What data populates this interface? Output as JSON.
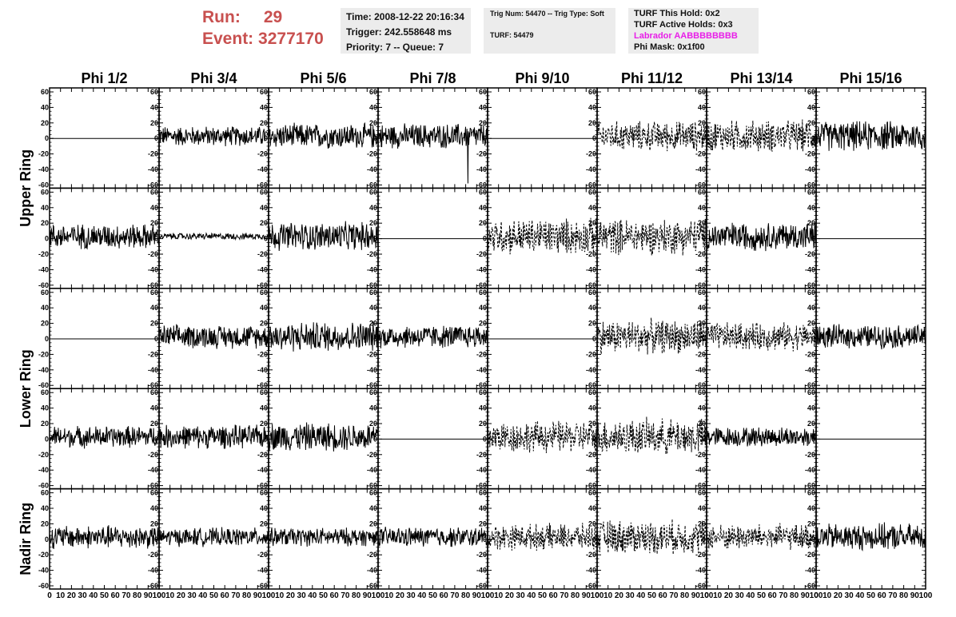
{
  "header": {
    "run_label": "Run:",
    "run_value": "29",
    "event_label": "Event:",
    "event_value": "3277170",
    "time_panel": {
      "time": "Time: 2008-12-22 20:16:34",
      "trigger": "Trigger: 242.558648 ms",
      "priority": "Priority: 7 -- Queue: 7"
    },
    "trig_panel": {
      "trig": "Trig Num: 54470 -- Trig Type: Soft",
      "turf": "TURF: 54479"
    },
    "turf_panel": {
      "this_hold": "TURF This Hold: 0x2",
      "active_holds": "TURF Active Holds: 0x3",
      "labrador": "Labrador AABBBBBBBB",
      "phi_mask": "Phi Mask: 0x1f00"
    },
    "colors": {
      "run_text": "#c8504f",
      "labrador_text": "#e81ee8",
      "panel_bg": "#ececec"
    }
  },
  "chart_data": {
    "type": "line",
    "layout": "grid of waveform panels",
    "column_titles": [
      "Phi 1/2",
      "Phi 3/4",
      "Phi 5/6",
      "Phi 7/8",
      "Phi 9/10",
      "Phi 11/12",
      "Phi 13/14",
      "Phi 15/16"
    ],
    "row_titles": [
      {
        "label": "Upper Ring",
        "rows": [
          0,
          1
        ]
      },
      {
        "label": "Lower Ring",
        "rows": [
          2,
          3
        ]
      },
      {
        "label": "Nadir Ring",
        "rows": [
          4
        ]
      }
    ],
    "ylim": [
      -60,
      60
    ],
    "y_ticks": [
      -60,
      -40,
      -20,
      0,
      20,
      40,
      60
    ],
    "y_tick_labels": [
      "-60",
      "-40",
      "-20",
      "0",
      "20",
      "40",
      "60"
    ],
    "xlim": [
      0,
      100
    ],
    "x_ticks": [
      0,
      10,
      20,
      30,
      40,
      50,
      60,
      70,
      80,
      90,
      100
    ],
    "x_tick_labels": [
      "0",
      "10",
      "20",
      "30",
      "40",
      "50",
      "60",
      "70",
      "80",
      "90",
      "100"
    ],
    "line_color": "#000000",
    "grid": false,
    "panels": [
      [
        {
          "style": "flat"
        },
        {
          "style": "solid",
          "amp": 12
        },
        {
          "style": "solid",
          "amp": 15
        },
        {
          "style": "solid",
          "amp": 15,
          "spike": -58
        },
        {
          "style": "flat"
        },
        {
          "style": "dashed",
          "amp": 15
        },
        {
          "style": "dashed",
          "amp": 16
        },
        {
          "style": "solid",
          "amp": 18
        }
      ],
      [
        {
          "style": "solid",
          "amp": 15
        },
        {
          "style": "solid",
          "amp": 4
        },
        {
          "style": "solid",
          "amp": 17
        },
        {
          "style": "flat"
        },
        {
          "style": "dashed",
          "amp": 18
        },
        {
          "style": "dashed",
          "amp": 18
        },
        {
          "style": "solid",
          "amp": 17
        },
        {
          "style": "flat"
        }
      ],
      [
        {
          "style": "flat"
        },
        {
          "style": "solid",
          "amp": 14
        },
        {
          "style": "solid",
          "amp": 18
        },
        {
          "style": "solid",
          "amp": 14
        },
        {
          "style": "flat"
        },
        {
          "style": "dashed",
          "amp": 17
        },
        {
          "style": "dashed",
          "amp": 14
        },
        {
          "style": "solid",
          "amp": 14
        }
      ],
      [
        {
          "style": "solid",
          "amp": 13
        },
        {
          "style": "solid",
          "amp": 14
        },
        {
          "style": "solid",
          "amp": 17
        },
        {
          "style": "flat"
        },
        {
          "style": "dashed",
          "amp": 16
        },
        {
          "style": "dashed",
          "amp": 18
        },
        {
          "style": "solid",
          "amp": 12
        },
        {
          "style": "flat"
        }
      ],
      [
        {
          "style": "solid",
          "amp": 14
        },
        {
          "style": "solid",
          "amp": 11
        },
        {
          "style": "solid",
          "amp": 11
        },
        {
          "style": "solid",
          "amp": 12
        },
        {
          "style": "dashed",
          "amp": 13
        },
        {
          "style": "dashed",
          "amp": 17
        },
        {
          "style": "dashed",
          "amp": 13
        },
        {
          "style": "solid",
          "amp": 16
        }
      ]
    ]
  }
}
